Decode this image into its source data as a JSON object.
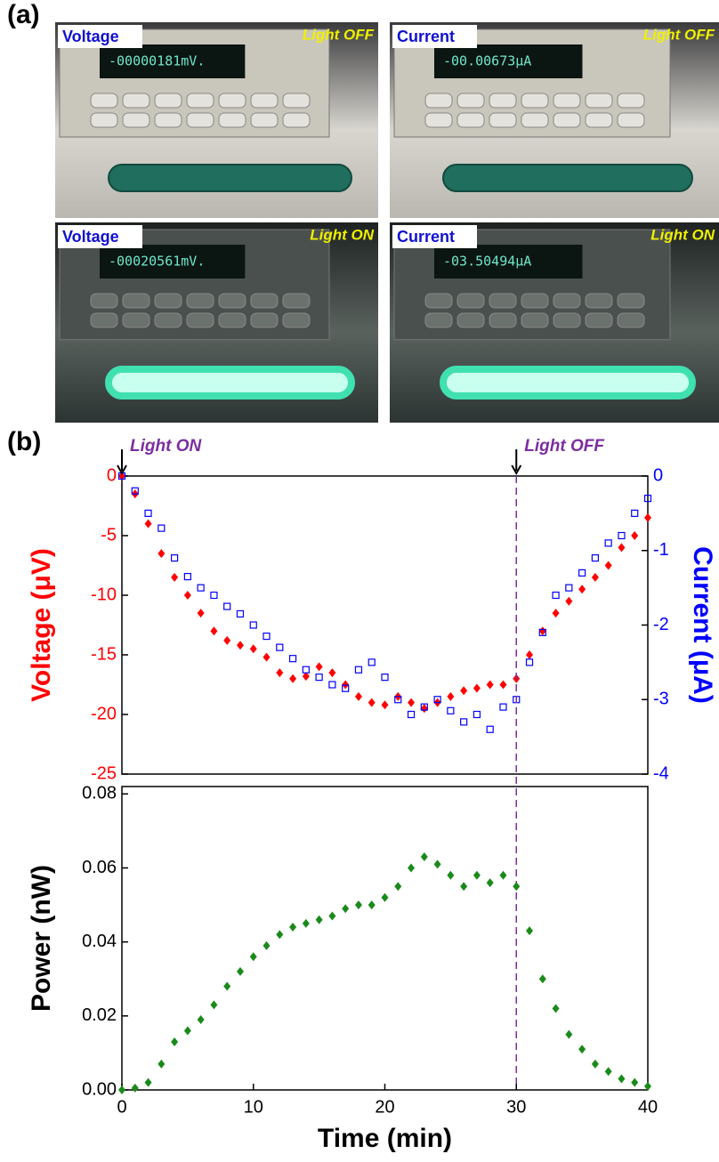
{
  "panel_labels": [
    "(a)",
    "(b)"
  ],
  "photos": [
    {
      "label": "Voltage",
      "state": "Light OFF",
      "reading": "-00000181mV."
    },
    {
      "label": "Current",
      "state": "Light OFF",
      "reading": "-00.00673µA"
    },
    {
      "label": "Voltage",
      "state": "Light ON",
      "reading": "-00020561mV."
    },
    {
      "label": "Current",
      "state": "Light ON",
      "reading": "-03.50494µA"
    }
  ],
  "chart_data": [
    {
      "type": "scatter",
      "ylabel": "Voltage (μV)",
      "y2label": "Current (μA)",
      "xlim": [
        0,
        40
      ],
      "ylim": [
        -25,
        0
      ],
      "y2lim": [
        -4,
        0
      ],
      "yticks": [
        0,
        -5,
        -10,
        -15,
        -20,
        -25
      ],
      "y2ticks": [
        0,
        -1,
        -2,
        -3,
        -4
      ],
      "annotations": [
        {
          "text": "Light ON",
          "x": 0
        },
        {
          "text": "Light OFF",
          "x": 30
        }
      ],
      "x": [
        0,
        1,
        2,
        3,
        4,
        5,
        6,
        7,
        8,
        9,
        10,
        11,
        12,
        13,
        14,
        15,
        16,
        17,
        18,
        19,
        20,
        21,
        22,
        23,
        24,
        25,
        26,
        27,
        28,
        29,
        30,
        31,
        32,
        33,
        34,
        35,
        36,
        37,
        38,
        39,
        40
      ],
      "series": [
        {
          "color": "#ff0000",
          "marker": "diamond",
          "axis": "y",
          "values": [
            0,
            -1.5,
            -4,
            -6.5,
            -8.5,
            -10,
            -11.5,
            -13,
            -13.8,
            -14.2,
            -14.5,
            -15.2,
            -16.5,
            -17,
            -16.8,
            -16,
            -16.5,
            -17.5,
            -18.5,
            -19,
            -19.2,
            -18.5,
            -19,
            -19.5,
            -19,
            -18.5,
            -18,
            -17.8,
            -17.5,
            -17.5,
            -17,
            -15,
            -13,
            -11.5,
            -10.5,
            -9.5,
            -8.5,
            -7.5,
            -6,
            -5,
            -3.5
          ]
        },
        {
          "color": "#0000ff",
          "marker": "open-square",
          "axis": "y2",
          "values": [
            0,
            -0.2,
            -0.5,
            -0.7,
            -1.1,
            -1.35,
            -1.5,
            -1.6,
            -1.75,
            -1.85,
            -2,
            -2.15,
            -2.3,
            -2.45,
            -2.6,
            -2.7,
            -2.8,
            -2.85,
            -2.6,
            -2.5,
            -2.7,
            -3,
            -3.2,
            -3.1,
            -3,
            -3.15,
            -3.3,
            -3.2,
            -3.4,
            -3.1,
            -3,
            -2.5,
            -2.1,
            -1.6,
            -1.5,
            -1.3,
            -1.1,
            -0.9,
            -0.8,
            -0.5,
            -0.3
          ]
        }
      ]
    },
    {
      "type": "scatter",
      "ylabel": "Power (nW)",
      "xlabel": "Time (min)",
      "xlim": [
        0,
        40
      ],
      "ylim": [
        0,
        0.082
      ],
      "xticks": [
        0,
        10,
        20,
        30,
        40
      ],
      "yticks": [
        {
          "value": 0,
          "label": "0.00"
        },
        0.02,
        0.04,
        0.06,
        0.08
      ],
      "x": [
        0,
        1,
        2,
        3,
        4,
        5,
        6,
        7,
        8,
        9,
        10,
        11,
        12,
        13,
        14,
        15,
        16,
        17,
        18,
        19,
        20,
        21,
        22,
        23,
        24,
        25,
        26,
        27,
        28,
        29,
        30,
        31,
        32,
        33,
        34,
        35,
        36,
        37,
        38,
        39,
        40
      ],
      "series": [
        {
          "color": "#1a8a1a",
          "marker": "diamond",
          "axis": "y",
          "values": [
            0,
            0.0005,
            0.002,
            0.007,
            0.013,
            0.016,
            0.019,
            0.023,
            0.028,
            0.032,
            0.036,
            0.039,
            0.042,
            0.044,
            0.045,
            0.046,
            0.047,
            0.049,
            0.05,
            0.05,
            0.052,
            0.055,
            0.06,
            0.063,
            0.061,
            0.058,
            0.055,
            0.058,
            0.056,
            0.058,
            0.055,
            0.043,
            0.03,
            0.022,
            0.015,
            0.011,
            0.007,
            0.005,
            0.003,
            0.002,
            0.001
          ]
        }
      ]
    }
  ]
}
